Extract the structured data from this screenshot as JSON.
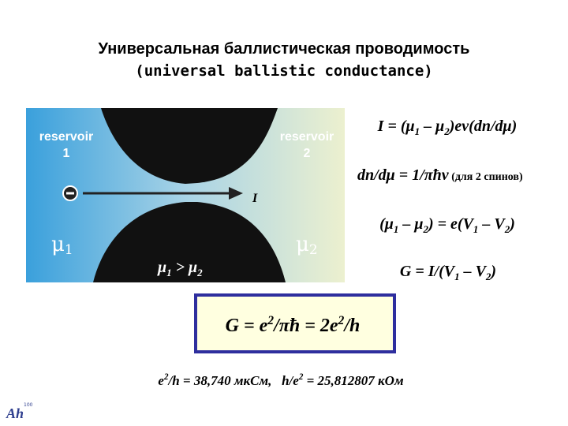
{
  "header": {
    "title": "Универсальная баллистическая проводимость",
    "subtitle": "(universal ballistic conductance)"
  },
  "figure": {
    "left_reservoir": [
      "reservoir",
      "1"
    ],
    "right_reservoir": [
      "reservoir",
      "2"
    ],
    "current": "I",
    "mu_left": [
      "μ",
      "1"
    ],
    "mu_right": [
      "μ",
      "2"
    ],
    "condition": [
      "μ",
      "1",
      " > μ",
      "2"
    ]
  },
  "equations": [
    [
      "I = (μ",
      "1",
      " – μ",
      "2",
      ")eν(dn/dμ)"
    ],
    [
      "dn/dμ = 1/πħν",
      " (для 2 спинов)"
    ],
    [
      "(μ",
      "1",
      " – μ",
      "2",
      ") = e(V",
      "1",
      " – V",
      "2",
      ")"
    ],
    [
      "G = I/(V",
      "1",
      " – V",
      "2",
      ")"
    ]
  ],
  "result": [
    "G = e",
    "2",
    "/πħ = 2e",
    "2",
    "/h"
  ],
  "constants": [
    "e",
    "2",
    "/h = 38,740 мкСм,   h/e",
    "2",
    " = 25,812807 кОм"
  ],
  "logo": {
    "mark": "Ah",
    "number": "100"
  }
}
